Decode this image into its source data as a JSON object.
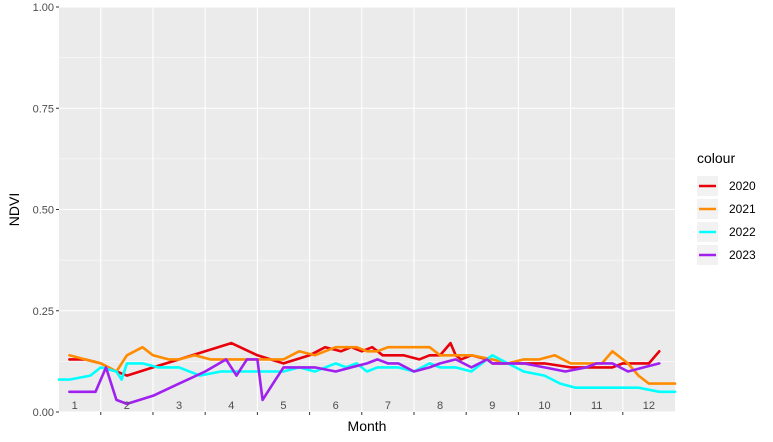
{
  "chart_data": {
    "type": "line",
    "title": "",
    "xlabel": "Month",
    "ylabel": "NDVI",
    "ylim": [
      0,
      1
    ],
    "xlim": [
      0.7,
      12.5
    ],
    "x_ticks": [
      1,
      2,
      3,
      4,
      5,
      6,
      7,
      8,
      9,
      10,
      11,
      12
    ],
    "x_tick_labels": [
      "1",
      "2",
      "3",
      "4",
      "5",
      "6",
      "7",
      "8",
      "9",
      "10",
      "11",
      "12"
    ],
    "y_ticks": [
      0,
      0.25,
      0.5,
      0.75,
      1
    ],
    "y_tick_labels": [
      "0.00",
      "0.25",
      "0.50",
      "0.75",
      "1.00"
    ],
    "grid": true,
    "legend": {
      "title": "colour",
      "position": "right"
    },
    "series": [
      {
        "name": "2020",
        "color": "#e8000b",
        "x": [
          0.9,
          1.2,
          1.5,
          1.8,
          2.0,
          2.5,
          3.0,
          3.5,
          4.0,
          4.5,
          5.0,
          5.5,
          5.8,
          6.1,
          6.3,
          6.5,
          6.7,
          6.9,
          7.1,
          7.3,
          7.6,
          7.8,
          8.0,
          8.2,
          8.3,
          8.4,
          8.6,
          8.9,
          9.0,
          9.3,
          9.6,
          10.0,
          10.5,
          11.0,
          11.3,
          11.5,
          11.7,
          12.0,
          12.2
        ],
        "y": [
          0.13,
          0.13,
          0.12,
          0.1,
          0.09,
          0.11,
          0.13,
          0.15,
          0.17,
          0.14,
          0.12,
          0.14,
          0.16,
          0.15,
          0.16,
          0.15,
          0.16,
          0.14,
          0.14,
          0.14,
          0.13,
          0.14,
          0.14,
          0.17,
          0.14,
          0.13,
          0.14,
          0.13,
          0.12,
          0.12,
          0.12,
          0.12,
          0.11,
          0.11,
          0.11,
          0.12,
          0.12,
          0.12,
          0.15
        ]
      },
      {
        "name": "2021",
        "color": "#ff8c00",
        "x": [
          0.9,
          1.2,
          1.5,
          1.8,
          2.0,
          2.3,
          2.5,
          2.8,
          3.0,
          3.3,
          3.6,
          4.0,
          4.5,
          5.0,
          5.3,
          5.6,
          6.0,
          6.2,
          6.4,
          6.6,
          6.8,
          7.0,
          7.3,
          7.6,
          7.8,
          8.0,
          8.3,
          8.6,
          9.0,
          9.3,
          9.6,
          9.9,
          10.2,
          10.5,
          10.8,
          11.1,
          11.3,
          11.6,
          11.8,
          12.0,
          12.3,
          12.5
        ],
        "y": [
          0.14,
          0.13,
          0.12,
          0.1,
          0.14,
          0.16,
          0.14,
          0.13,
          0.13,
          0.14,
          0.13,
          0.13,
          0.13,
          0.13,
          0.15,
          0.14,
          0.16,
          0.16,
          0.16,
          0.15,
          0.15,
          0.16,
          0.16,
          0.16,
          0.16,
          0.14,
          0.14,
          0.14,
          0.13,
          0.12,
          0.13,
          0.13,
          0.14,
          0.12,
          0.12,
          0.12,
          0.15,
          0.12,
          0.09,
          0.07,
          0.07,
          0.07
        ]
      },
      {
        "name": "2022",
        "color": "#00ffff",
        "x": [
          0.7,
          0.9,
          1.3,
          1.5,
          1.8,
          1.9,
          2.0,
          2.3,
          2.6,
          3.0,
          3.4,
          3.8,
          4.2,
          4.6,
          5.0,
          5.3,
          5.6,
          6.0,
          6.2,
          6.4,
          6.6,
          6.8,
          7.0,
          7.2,
          7.5,
          7.8,
          8.0,
          8.3,
          8.6,
          9.0,
          9.3,
          9.6,
          10.0,
          10.3,
          10.6,
          11.0,
          11.4,
          11.8,
          12.2,
          12.5
        ],
        "y": [
          0.08,
          0.08,
          0.09,
          0.11,
          0.1,
          0.08,
          0.12,
          0.12,
          0.11,
          0.11,
          0.09,
          0.1,
          0.1,
          0.1,
          0.1,
          0.11,
          0.1,
          0.12,
          0.11,
          0.12,
          0.1,
          0.11,
          0.11,
          0.11,
          0.1,
          0.12,
          0.11,
          0.11,
          0.1,
          0.14,
          0.12,
          0.1,
          0.09,
          0.07,
          0.06,
          0.06,
          0.06,
          0.06,
          0.05,
          0.05
        ]
      },
      {
        "name": "2023",
        "color": "#a020f0",
        "x": [
          0.9,
          1.2,
          1.4,
          1.6,
          1.8,
          2.0,
          2.5,
          3.0,
          3.5,
          3.9,
          4.1,
          4.3,
          4.5,
          4.6,
          4.8,
          5.0,
          5.3,
          5.6,
          6.0,
          6.3,
          6.6,
          6.8,
          7.0,
          7.2,
          7.5,
          7.8,
          8.0,
          8.3,
          8.6,
          8.9,
          9.0,
          9.3,
          9.6,
          10.0,
          10.4,
          10.8,
          11.0,
          11.3,
          11.6,
          11.9,
          12.2
        ],
        "y": [
          0.05,
          0.05,
          0.05,
          0.11,
          0.03,
          0.02,
          0.04,
          0.07,
          0.1,
          0.13,
          0.09,
          0.13,
          0.13,
          0.03,
          0.07,
          0.11,
          0.11,
          0.11,
          0.1,
          0.11,
          0.12,
          0.13,
          0.12,
          0.12,
          0.1,
          0.11,
          0.12,
          0.13,
          0.11,
          0.13,
          0.12,
          0.12,
          0.12,
          0.11,
          0.1,
          0.11,
          0.12,
          0.12,
          0.1,
          0.11,
          0.12
        ]
      }
    ]
  }
}
